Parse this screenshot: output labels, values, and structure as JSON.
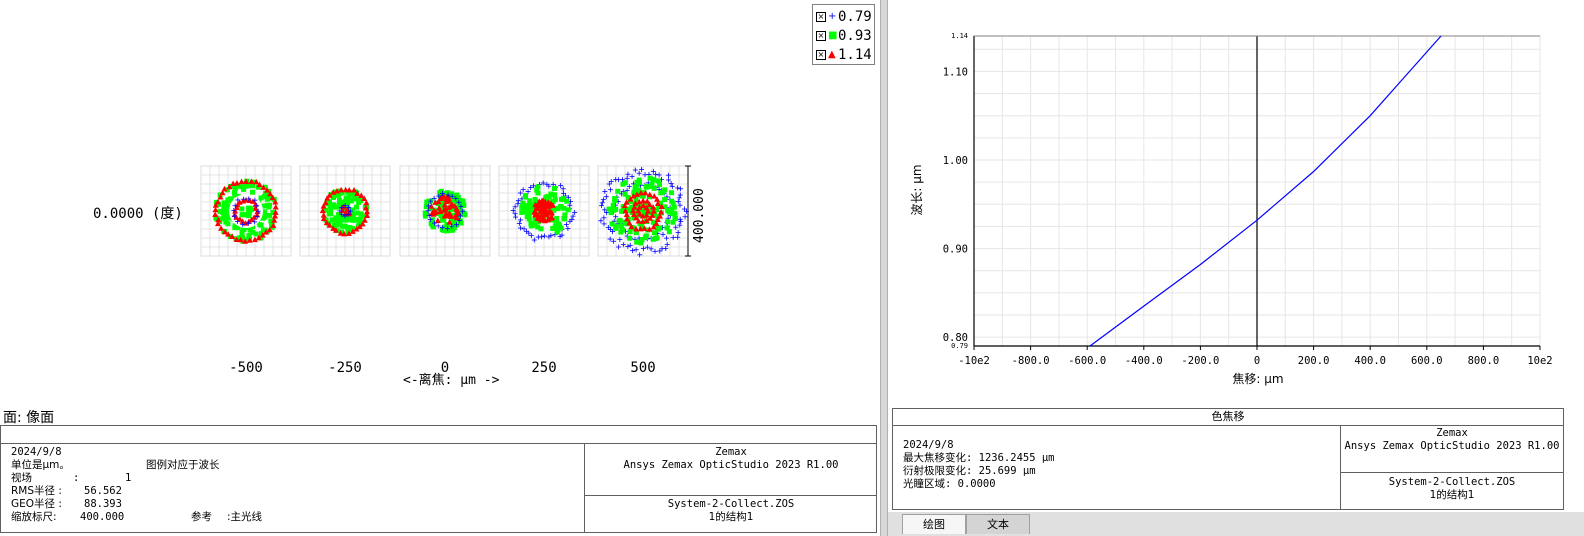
{
  "spot": {
    "field_label": "0.0000 (度)",
    "defocus_values": [
      "-500",
      "-250",
      "0",
      "250",
      "500"
    ],
    "axis_label": "<-离焦: μm ->",
    "scale_label": "400.000",
    "surface_label": "面: 像面",
    "legend": [
      {
        "label": "0.79",
        "marker": "plus",
        "color": "#0000ff"
      },
      {
        "label": "0.93",
        "marker": "square",
        "color": "#00ff00"
      },
      {
        "label": "1.14",
        "marker": "triangle",
        "color": "#ff0000"
      }
    ],
    "footer": {
      "date": "2024/9/8",
      "unit_note": "单位是μm。",
      "legend_note": "图例对应于波长",
      "field_label": "视场",
      "field_sep": ":",
      "field_value": "1",
      "rms_label": "RMS半径 :",
      "rms_value": "56.562",
      "geo_label": "GEO半径 :",
      "geo_value": "88.393",
      "scale_label": "缩放标尺:",
      "scale_value": "400.000",
      "ref_label": "参考",
      "ref_value": ":主光线",
      "company": "Zemax",
      "product": "Ansys Zemax OpticStudio 2023 R1.00",
      "file": "System-2-Collect.ZOS",
      "config": "1的结构1"
    }
  },
  "focal": {
    "header": "色焦移",
    "footer": {
      "date": "2024/9/8",
      "max_shift": "最大焦移变化: 1236.2455 μm",
      "diff_limit": "衍射极限变化: 25.699 μm",
      "pupil": "光瞳区域: 0.0000",
      "company": "Zemax",
      "product": "Ansys Zemax OpticStudio 2023 R1.00",
      "file": "System-2-Collect.ZOS",
      "config": "1的结构1"
    },
    "tabs": [
      "绘图",
      "文本"
    ]
  },
  "chart_data": {
    "type": "line",
    "xlabel": "焦移: μm",
    "ylabel": "波长: μm",
    "xlim": [
      -1000,
      1000
    ],
    "ylim": [
      0.79,
      1.14
    ],
    "x_ticks": [
      "-10e2",
      "-800.0",
      "-600.0",
      "-400.0",
      "-200.0",
      "0",
      "200.0",
      "400.0",
      "600.0",
      "800.0",
      "10e2"
    ],
    "y_ticks": [
      {
        "value": 0.79,
        "label": "0.79"
      },
      {
        "value": 0.8,
        "label": "0.80"
      },
      {
        "value": 0.9,
        "label": "0.90"
      },
      {
        "value": 1.0,
        "label": "1.00"
      },
      {
        "value": 1.1,
        "label": "1.10"
      },
      {
        "value": 1.14,
        "label": "1.14"
      }
    ],
    "grid": true,
    "series": [
      {
        "color": "#0000ff",
        "x": [
          -590,
          -400,
          -200,
          0,
          200,
          400,
          650
        ],
        "y": [
          0.79,
          0.835,
          0.882,
          0.932,
          0.987,
          1.05,
          1.14
        ]
      }
    ]
  },
  "colors": {
    "blue": "#0000ff",
    "green": "#00ff00",
    "red": "#ff0000",
    "grid": "#dcdcdc"
  }
}
